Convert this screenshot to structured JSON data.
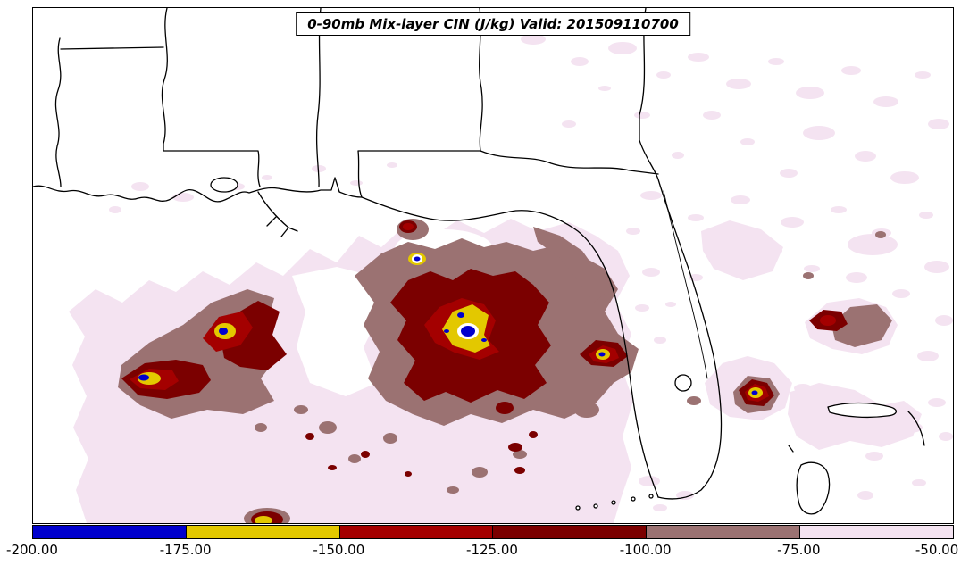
{
  "figure": {
    "title": "0-90mb Mix-layer CIN (J/kg) Valid: 201509110700"
  },
  "colorbar": {
    "ticks": [
      "-200.00",
      "-175.00",
      "-150.00",
      "-125.00",
      "-100.00",
      "-75.00",
      "-50.00"
    ],
    "segments": [
      {
        "range": "-200.00 to -175.00",
        "color": "#0000cd"
      },
      {
        "range": "-175.00 to -150.00",
        "color": "#e3c800"
      },
      {
        "range": "-150.00 to -125.00",
        "color": "#a40000"
      },
      {
        "range": "-125.00 to -100.00",
        "color": "#7b0000"
      },
      {
        "range": "-100.00 to -75.00",
        "color": "#9b7272"
      },
      {
        "range": "-75.00 to -50.00",
        "color": "#f4e3f1"
      }
    ]
  },
  "palette": {
    "blue": "#0000cd",
    "yellow": "#e3c800",
    "red": "#a40000",
    "darkred": "#7b0000",
    "mauve": "#9b7272",
    "palepink": "#f4e3f1",
    "outline": "#000000",
    "background": "#ffffff"
  },
  "chart_data": {
    "type": "heatmap",
    "title": "0-90mb Mix-layer CIN (J/kg) Valid: 201509110700",
    "units": "J/kg",
    "value_range": [
      -200,
      -50
    ],
    "colorbar": {
      "orientation": "horizontal",
      "position": "bottom",
      "tick_values": [
        -200,
        -175,
        -150,
        -125,
        -100,
        -75,
        -50
      ],
      "tick_labels": [
        "-200.00",
        "-175.00",
        "-150.00",
        "-125.00",
        "-100.00",
        "-75.00",
        "-50.00"
      ]
    },
    "bins": [
      {
        "range": [
          -200,
          -175
        ],
        "color": "#0000cd"
      },
      {
        "range": [
          -175,
          -150
        ],
        "color": "#e3c800"
      },
      {
        "range": [
          -150,
          -125
        ],
        "color": "#a40000"
      },
      {
        "range": [
          -125,
          -100
        ],
        "color": "#7b0000"
      },
      {
        "range": [
          -100,
          -75
        ],
        "color": "#9b7272"
      },
      {
        "range": [
          -75,
          -50
        ],
        "color": "#f4e3f1"
      }
    ]
  }
}
